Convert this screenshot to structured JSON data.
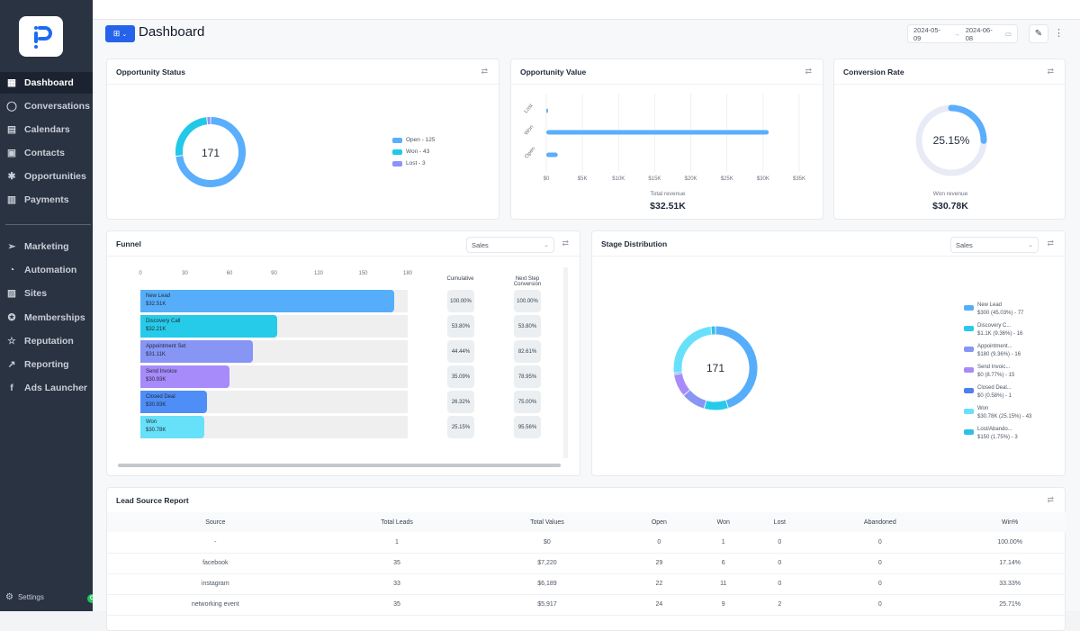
{
  "sidebar": {
    "logo": "P",
    "items": [
      {
        "label": "Dashboard",
        "icon": "grid-icon",
        "active": true
      },
      {
        "label": "Conversations",
        "icon": "chat-icon"
      },
      {
        "label": "Calendars",
        "icon": "calendar-icon"
      },
      {
        "label": "Contacts",
        "icon": "contacts-icon"
      },
      {
        "label": "Opportunities",
        "icon": "opportunities-icon"
      },
      {
        "label": "Payments",
        "icon": "payments-icon"
      },
      {
        "label": "Marketing",
        "icon": "send-icon"
      },
      {
        "label": "Automation",
        "icon": "automation-icon"
      },
      {
        "label": "Sites",
        "icon": "sites-icon"
      },
      {
        "label": "Memberships",
        "icon": "award-icon"
      },
      {
        "label": "Reputation",
        "icon": "star-icon"
      },
      {
        "label": "Reporting",
        "icon": "trend-icon"
      },
      {
        "label": "Ads Launcher",
        "icon": "facebook-icon"
      }
    ],
    "settings_label": "Settings",
    "badge": "C"
  },
  "header": {
    "title": "Dashboard",
    "date_from": "2024-05-09",
    "date_arrow": "→",
    "date_to": "2024-06-08"
  },
  "opportunity_status": {
    "title": "Opportunity Status",
    "total": "171",
    "legend": [
      {
        "label": "Open - 125",
        "value": 125,
        "color": "#5aaefc"
      },
      {
        "label": "Won - 43",
        "value": 43,
        "color": "#22c8e8"
      },
      {
        "label": "Lost - 3",
        "value": 3,
        "color": "#8b93f8"
      }
    ]
  },
  "opportunity_value": {
    "title": "Opportunity Value",
    "categories": [
      "Lost",
      "Won",
      "Open"
    ],
    "values": [
      150,
      30780,
      1580
    ],
    "x_ticks": [
      "$0",
      "$5K",
      "$10K",
      "$15K",
      "$20K",
      "$25K",
      "$30K",
      "$35K"
    ],
    "x_max": 35000,
    "caption": "Total revenue",
    "total": "$32.51K",
    "color": "#5aaefc"
  },
  "conversion_rate": {
    "title": "Conversion Rate",
    "value_label": "25.15%",
    "value": 25.15,
    "caption": "Won revenue",
    "amount": "$30.78K",
    "color": "#5aaefc"
  },
  "funnel": {
    "title": "Funnel",
    "select_value": "Sales",
    "x_ticks": [
      "0",
      "30",
      "60",
      "90",
      "120",
      "150",
      "180"
    ],
    "x_max": 180,
    "col_cumulative": "Cumulative",
    "col_next": "Next Step Conversion",
    "stages": [
      {
        "name": "New Lead",
        "amount": "$32.51K",
        "count": 171,
        "cumulative": "100.00%",
        "next": "100.00%",
        "color": "#56aefb"
      },
      {
        "name": "Discovery Call",
        "amount": "$32.21K",
        "count": 92,
        "cumulative": "53.80%",
        "next": "53.80%",
        "color": "#26cbe9"
      },
      {
        "name": "Appointment Set",
        "amount": "$31.11K",
        "count": 76,
        "cumulative": "44.44%",
        "next": "82.61%",
        "color": "#8795f5"
      },
      {
        "name": "Send Invoice",
        "amount": "$30.93K",
        "count": 60,
        "cumulative": "35.09%",
        "next": "78.95%",
        "color": "#a78bfa"
      },
      {
        "name": "Closed Deal",
        "amount": "$30.93K",
        "count": 45,
        "cumulative": "26.32%",
        "next": "75.00%",
        "color": "#4f8ef7"
      },
      {
        "name": "Won",
        "amount": "$30.78K",
        "count": 43,
        "cumulative": "25.15%",
        "next": "95.56%",
        "color": "#67e1f9"
      }
    ]
  },
  "stage_distribution": {
    "title": "Stage Distribution",
    "select_value": "Sales",
    "total": "171",
    "legend": [
      {
        "name": "New Lead",
        "detail": "$300 (45.03%) - 77",
        "value": 77,
        "color": "#56aefb"
      },
      {
        "name": "Discovery C...",
        "detail": "$1.1K (9.36%) - 16",
        "value": 16,
        "color": "#26cbe9"
      },
      {
        "name": "Appointment...",
        "detail": "$180 (9.36%) - 16",
        "value": 16,
        "color": "#8795f5"
      },
      {
        "name": "Send Invoic...",
        "detail": "$0 (8.77%) - 15",
        "value": 15,
        "color": "#a78bfa"
      },
      {
        "name": "Closed Deal...",
        "detail": "$0 (0.58%) - 1",
        "value": 1,
        "color": "#4f7ff0"
      },
      {
        "name": "Won",
        "detail": "$30.78K (25.15%) - 43",
        "value": 43,
        "color": "#67e1f9"
      },
      {
        "name": "Lost/Abando...",
        "detail": "$150 (1.75%) - 3",
        "value": 3,
        "color": "#2fbfea"
      }
    ]
  },
  "lead_source": {
    "title": "Lead Source Report",
    "columns": [
      "Source",
      "Total Leads",
      "Total Values",
      "Open",
      "Won",
      "Lost",
      "Abandoned",
      "Win%"
    ],
    "rows": [
      [
        "-",
        "1",
        "$0",
        "0",
        "1",
        "0",
        "0",
        "100.00%"
      ],
      [
        "facebook",
        "35",
        "$7,220",
        "29",
        "6",
        "0",
        "0",
        "17.14%"
      ],
      [
        "instagram",
        "33",
        "$6,189",
        "22",
        "11",
        "0",
        "0",
        "33.33%"
      ],
      [
        "networking event",
        "35",
        "$5,917",
        "24",
        "9",
        "2",
        "0",
        "25.71%"
      ]
    ]
  }
}
